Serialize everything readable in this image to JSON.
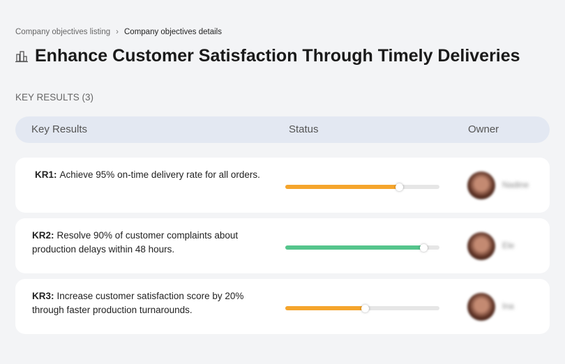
{
  "breadcrumb": [
    "Company objectives listing",
    "Company objectives details"
  ],
  "title": "Enhance Customer Satisfaction Through Timely Deliveries",
  "section_label": "KEY RESULTS (3)",
  "table": {
    "headers": [
      "Key Results",
      "Status",
      "Owner"
    ],
    "rows": [
      {
        "label": "KR1:",
        "text": "Achieve 95% on-time delivery rate for all orders.",
        "progress": 74,
        "color": "#f5a52c",
        "owner": "Nadine"
      },
      {
        "label": "KR2:",
        "text": "Resolve 90% of customer complaints about production delays within 48 hours.",
        "progress": 90,
        "color": "#55c58c",
        "owner": "Ele"
      },
      {
        "label": "KR3:",
        "text": "Increase customer satisfaction score by 20% through faster production turnarounds.",
        "progress": 52,
        "color": "#f5a52c",
        "owner": "Ina"
      }
    ]
  }
}
